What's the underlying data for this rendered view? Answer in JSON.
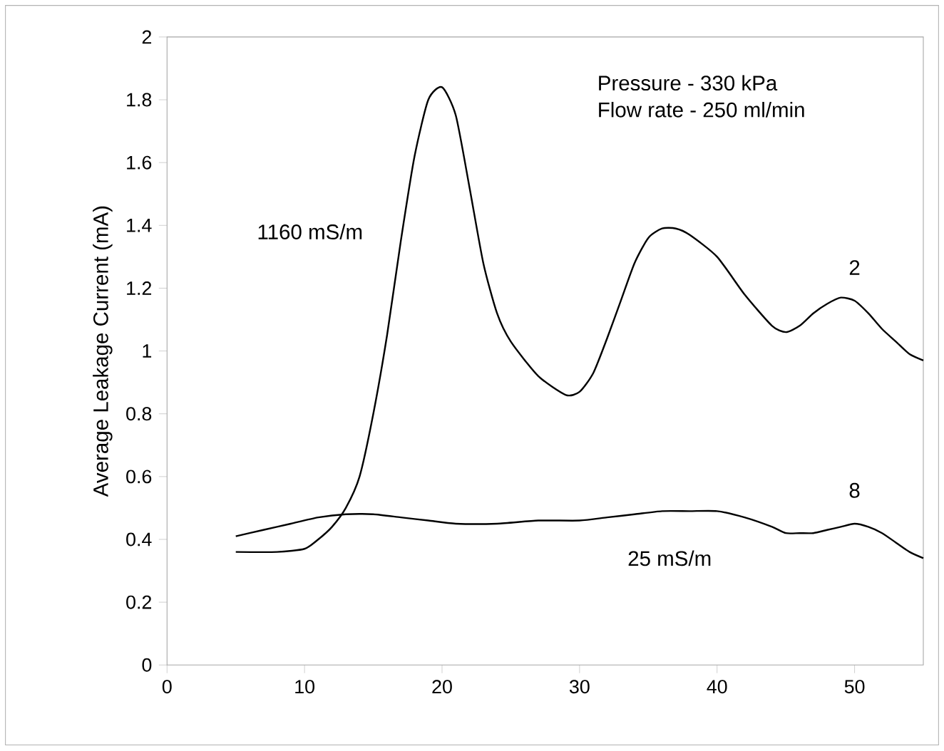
{
  "chart_data": {
    "type": "line",
    "ylabel": "Average Leakage Current (mA)",
    "xlim": [
      0,
      55
    ],
    "ylim": [
      0,
      2
    ],
    "xticks": [
      0,
      10,
      20,
      30,
      40,
      50
    ],
    "yticks": [
      0,
      0.2,
      0.4,
      0.6,
      0.8,
      1,
      1.2,
      1.4,
      1.6,
      1.8,
      2
    ],
    "grid": false,
    "legend": false,
    "marker": "none",
    "line_style": "solid",
    "series": [
      {
        "name": "2",
        "color": "#000000",
        "x": [
          5,
          8,
          10,
          11,
          12,
          13,
          14,
          15,
          16,
          17,
          18,
          19,
          20,
          21,
          22,
          23,
          24,
          25,
          27,
          29,
          30,
          31,
          32,
          33,
          34,
          35,
          36,
          37,
          38,
          40,
          42,
          44,
          45,
          46,
          47,
          48,
          49,
          50,
          51,
          52,
          53,
          54,
          55
        ],
        "values": [
          0.36,
          0.36,
          0.37,
          0.4,
          0.44,
          0.5,
          0.6,
          0.8,
          1.05,
          1.35,
          1.62,
          1.8,
          1.84,
          1.75,
          1.52,
          1.28,
          1.12,
          1.03,
          0.92,
          0.86,
          0.87,
          0.93,
          1.04,
          1.16,
          1.28,
          1.36,
          1.39,
          1.39,
          1.37,
          1.3,
          1.18,
          1.08,
          1.06,
          1.08,
          1.12,
          1.15,
          1.17,
          1.16,
          1.12,
          1.07,
          1.03,
          0.99,
          0.97
        ]
      },
      {
        "name": "8",
        "color": "#000000",
        "x": [
          5,
          7,
          9,
          11,
          13,
          15,
          17,
          19,
          21,
          24,
          27,
          30,
          32,
          34,
          36,
          38,
          40,
          42,
          44,
          45,
          46,
          47,
          48,
          49,
          50,
          51,
          52,
          53,
          54,
          55
        ],
        "values": [
          0.41,
          0.43,
          0.45,
          0.47,
          0.48,
          0.48,
          0.47,
          0.46,
          0.45,
          0.45,
          0.46,
          0.46,
          0.47,
          0.48,
          0.49,
          0.49,
          0.49,
          0.47,
          0.44,
          0.42,
          0.42,
          0.42,
          0.43,
          0.44,
          0.45,
          0.44,
          0.42,
          0.39,
          0.36,
          0.34
        ]
      }
    ],
    "annotations": [
      "1160 mS/m",
      "25 mS/m",
      "Pressure - 330 kPa",
      "Flow rate - 250 ml/min"
    ]
  }
}
